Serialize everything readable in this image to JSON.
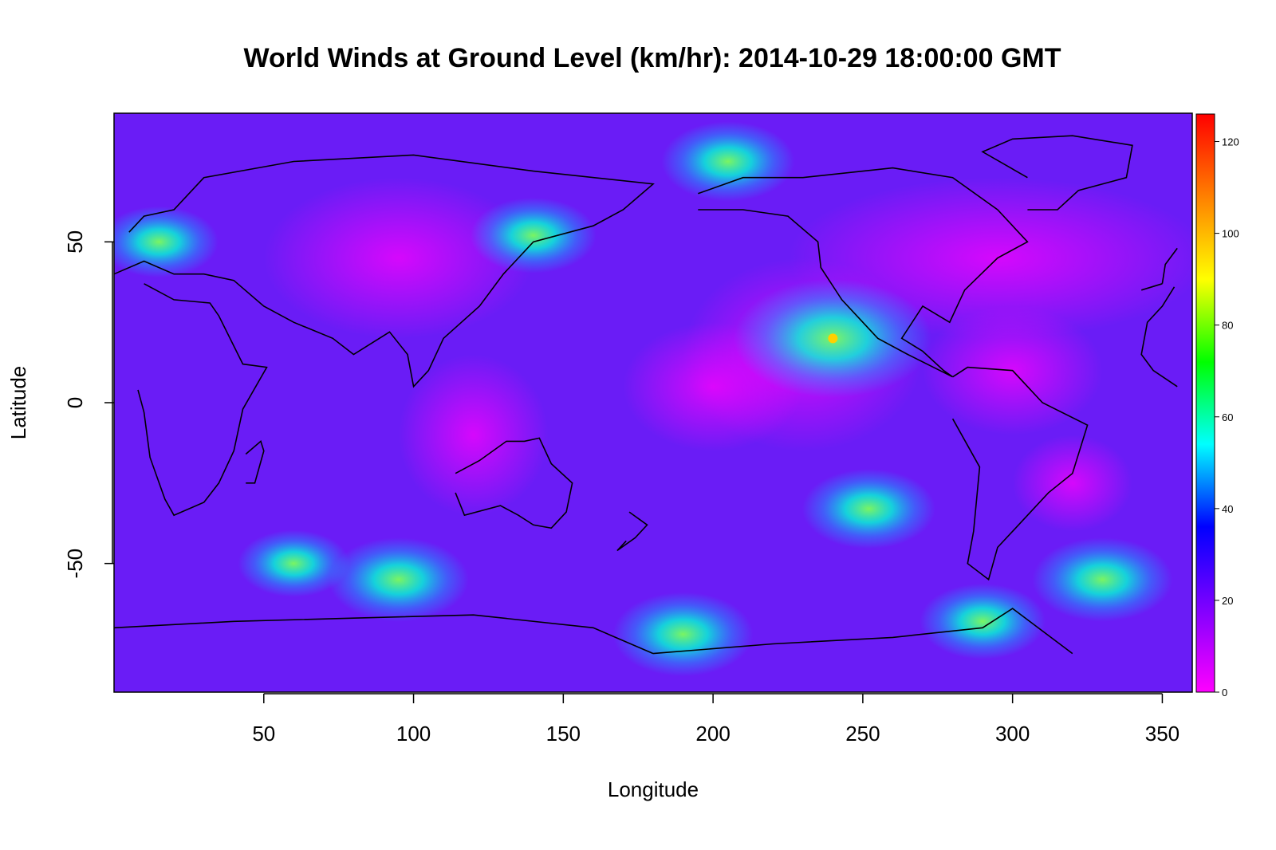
{
  "chart_data": {
    "type": "heatmap",
    "title": "World Winds at Ground Level (km/hr): 2014-10-29 18:00:00 GMT",
    "xlabel": "Longitude",
    "ylabel": "Latitude",
    "xlim": [
      0,
      360
    ],
    "ylim": [
      -90,
      90
    ],
    "x_ticks": [
      50,
      100,
      150,
      200,
      250,
      300,
      350
    ],
    "y_ticks": [
      -50,
      0,
      50
    ],
    "colorbar": {
      "range": [
        0,
        126
      ],
      "ticks": [
        0,
        20,
        40,
        60,
        80,
        100,
        120
      ],
      "colors": [
        "#ff00ff",
        "#8000ff",
        "#0000ff",
        "#00ffff",
        "#00ff00",
        "#ffff00",
        "#ff8000",
        "#ff0000"
      ]
    },
    "background_color": "#6a1cf6",
    "coastlines": true,
    "hotspots": [
      {
        "lon": 15,
        "lat": 50,
        "speed": 55
      },
      {
        "lon": 140,
        "lat": 52,
        "speed": 60
      },
      {
        "lon": 205,
        "lat": 75,
        "speed": 65
      },
      {
        "lon": 240,
        "lat": 20,
        "speed": 110
      },
      {
        "lon": 252,
        "lat": -33,
        "speed": 65
      },
      {
        "lon": 95,
        "lat": -55,
        "speed": 70
      },
      {
        "lon": 60,
        "lat": -50,
        "speed": 50
      },
      {
        "lon": 330,
        "lat": -55,
        "speed": 70
      },
      {
        "lon": 190,
        "lat": -72,
        "speed": 70
      },
      {
        "lon": 290,
        "lat": -68,
        "speed": 60
      }
    ]
  }
}
